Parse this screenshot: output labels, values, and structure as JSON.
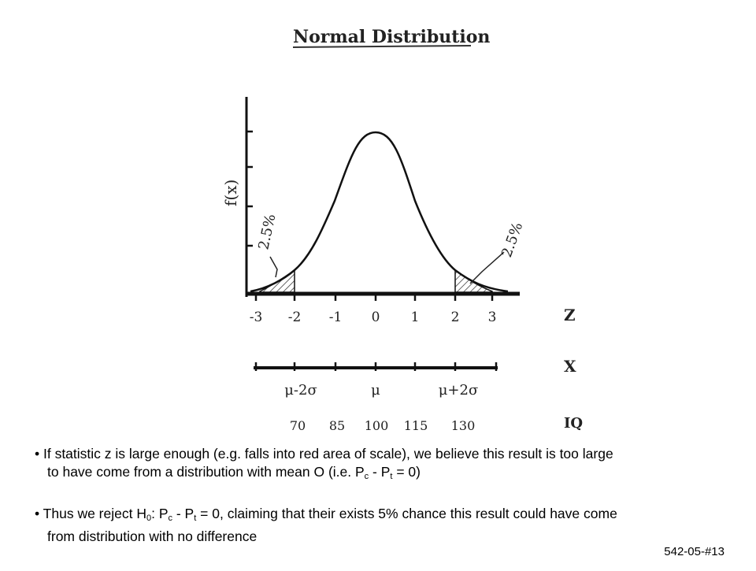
{
  "title": "Normal Distribution",
  "y_axis_label": "f(x)",
  "left_tail_label": "2.5%",
  "right_tail_label": "2.5%",
  "z_ticks": [
    "-3",
    "-2",
    "-1",
    "0",
    "1",
    "2",
    "3"
  ],
  "z_row_label": "Z",
  "x_ticks": [
    "μ-2σ",
    "μ",
    "μ+2σ"
  ],
  "x_row_label": "X",
  "iq_ticks": [
    "70",
    "85",
    "100",
    "115",
    "130"
  ],
  "iq_row_label": "IQ",
  "bullets": [
    {
      "line1_pre": "• If statistic z is large enough (e.g. falls into red area of scale), we believe this result is too large",
      "line2_pre": "to have come from a distribution with mean O (i.e. P",
      "sub1": "c",
      "mid": " - P",
      "sub2": "t",
      "line2_post": " = 0)"
    },
    {
      "pre": "• Thus we reject H",
      "sub0": "0",
      "colon": ": P",
      "sub1": "c",
      "mid": " - P",
      "sub2": "t",
      "post": " = 0, claiming that their exists 5% chance this result could have come",
      "line2": "from distribution with no difference"
    }
  ],
  "slide_number": "542-05-#13"
}
